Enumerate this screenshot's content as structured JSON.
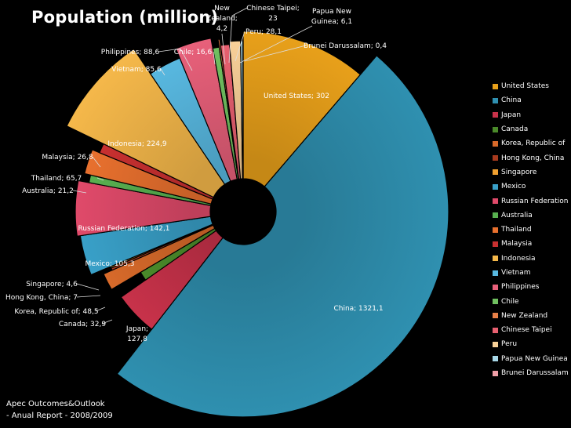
{
  "chart_data": {
    "type": "pie",
    "title": "Population (million)",
    "series": [
      {
        "name": "United States",
        "value": 302,
        "label": "United States; 302",
        "color": "#e8a01a"
      },
      {
        "name": "China",
        "value": 1321.1,
        "label": "China; 1321,1",
        "color": "#2f90b0"
      },
      {
        "name": "Japan",
        "value": 127.8,
        "label": "Japan; 127,8",
        "color": "#c8324a"
      },
      {
        "name": "Canada",
        "value": 32.9,
        "label": "Canada; 32,9",
        "color": "#4a8a2a"
      },
      {
        "name": "Korea, Republic of",
        "value": 48.5,
        "label": "Korea, Republic of; 48,5",
        "color": "#d86a2a"
      },
      {
        "name": "Hong Kong, China",
        "value": 7,
        "label": "Hong Kong, China; 7",
        "color": "#a83a1e"
      },
      {
        "name": "Singapore",
        "value": 4.6,
        "label": "Singapore; 4,6",
        "color": "#f0a030"
      },
      {
        "name": "Mexico",
        "value": 105.3,
        "label": "Mexico; 105,3",
        "color": "#39a0c8"
      },
      {
        "name": "Russian Federation",
        "value": 142.1,
        "label": "Russian Federation; 142,1",
        "color": "#e04a6a"
      },
      {
        "name": "Australia",
        "value": 21.2,
        "label": "Australia; 21,2",
        "color": "#58b050"
      },
      {
        "name": "Thailand",
        "value": 65.7,
        "label": "Thailand; 65,7",
        "color": "#e8702e"
      },
      {
        "name": "Malaysia",
        "value": 26.8,
        "label": "Malaysia; 26,8",
        "color": "#c83030"
      },
      {
        "name": "Indonesia",
        "value": 224.9,
        "label": "Indonesia; 224,9",
        "color": "#f5b84a"
      },
      {
        "name": "Vietnam",
        "value": 85.6,
        "label": "Vietnam; 85,6",
        "color": "#58b8e0"
      },
      {
        "name": "Philippines",
        "value": 88.6,
        "label": "Philippines; 88,6",
        "color": "#e8607a"
      },
      {
        "name": "Chile",
        "value": 16.6,
        "label": "Chile; 16,6",
        "color": "#70c060"
      },
      {
        "name": "New Zealand",
        "value": 4.2,
        "label": "New Zealand; 4,2",
        "color": "#e88048"
      },
      {
        "name": "Chinese Taipei",
        "value": 23,
        "label": "Chinese Taipei; 23",
        "color": "#e86070"
      },
      {
        "name": "Peru",
        "value": 28.1,
        "label": "Peru; 28,1",
        "color": "#f8d098"
      },
      {
        "name": "Papua New Guinea",
        "value": 6.1,
        "label": "Papua New Guinea; 6,1",
        "color": "#a8d8e8"
      },
      {
        "name": "Brunei Darussalam",
        "value": 0.4,
        "label": "Brunei Darussalam; 0,4",
        "color": "#f0a0a8"
      }
    ],
    "legend_position": "right"
  },
  "source": {
    "line1": "Apec Outcomes&Outlook",
    "line2": "- Anual Report - 2008/2009"
  }
}
